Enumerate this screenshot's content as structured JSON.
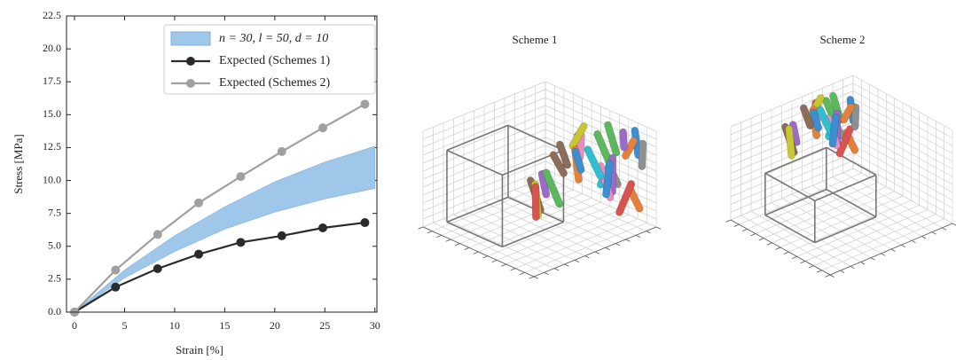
{
  "chart_data": {
    "type": "line",
    "xlabel": "Strain [%]",
    "ylabel": "Stress [MPa]",
    "xlim": [
      -0.8,
      30.2
    ],
    "ylim": [
      0,
      22.5
    ],
    "xticks": [
      0,
      5,
      10,
      15,
      20,
      25,
      30
    ],
    "yticks": [
      {
        "value": 0,
        "label": "0.0"
      },
      2.5,
      {
        "value": 5,
        "label": "5.0"
      },
      7.5,
      {
        "value": 10,
        "label": "10.0"
      },
      12.5,
      {
        "value": 15,
        "label": "15.0"
      },
      17.5,
      {
        "value": 20,
        "label": "20.0"
      },
      22.5
    ],
    "legend": "upper right",
    "band": {
      "name": "n = 30, l = 50, d = 10",
      "color": "#9fc7e9",
      "x": [
        0,
        5,
        10,
        15,
        20,
        25,
        30
      ],
      "lower": [
        0,
        2.6,
        4.6,
        6.3,
        7.6,
        8.6,
        9.4
      ],
      "upper": [
        0,
        3.2,
        5.8,
        8.0,
        9.9,
        11.4,
        12.6
      ]
    },
    "x": [
      0,
      4.1,
      8.3,
      12.4,
      16.6,
      20.7,
      24.8,
      29.0
    ],
    "series": [
      {
        "name": "Expected (Schemes 1)",
        "color": "#2b2b2b",
        "values": [
          0,
          1.9,
          3.3,
          4.4,
          5.3,
          5.8,
          6.4,
          6.8
        ]
      },
      {
        "name": "Expected (Schemes 2)",
        "color": "#a0a0a0",
        "values": [
          0,
          3.2,
          5.9,
          8.3,
          10.3,
          12.2,
          14.0,
          15.8
        ]
      }
    ]
  },
  "schemes": [
    {
      "title": "Scheme 1"
    },
    {
      "title": "Scheme 2"
    }
  ]
}
